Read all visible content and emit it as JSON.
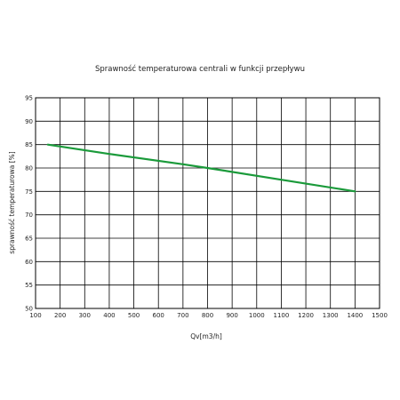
{
  "chart_data": {
    "type": "line",
    "title": "Sprawność temperaturowa centrali w funkcji przepływu",
    "xlabel": "Qv[m3/h]",
    "ylabel": "sprawność temperaturowa [%]",
    "xlim": [
      100,
      1500
    ],
    "ylim": [
      50,
      95
    ],
    "xticks": [
      "100",
      "200",
      "300",
      "400",
      "500",
      "600",
      "700",
      "800",
      "900",
      "1000",
      "1100",
      "1200",
      "1300",
      "1400",
      "1500"
    ],
    "yticks": [
      "50",
      "55",
      "60",
      "65",
      "70",
      "75",
      "80",
      "85",
      "90",
      "95"
    ],
    "grid": true,
    "series": [
      {
        "color": "#1a9a3a",
        "x": [
          150,
          400,
          700,
          800,
          1100,
          1400
        ],
        "y": [
          85,
          83,
          80.8,
          80,
          77.5,
          75
        ]
      }
    ]
  }
}
